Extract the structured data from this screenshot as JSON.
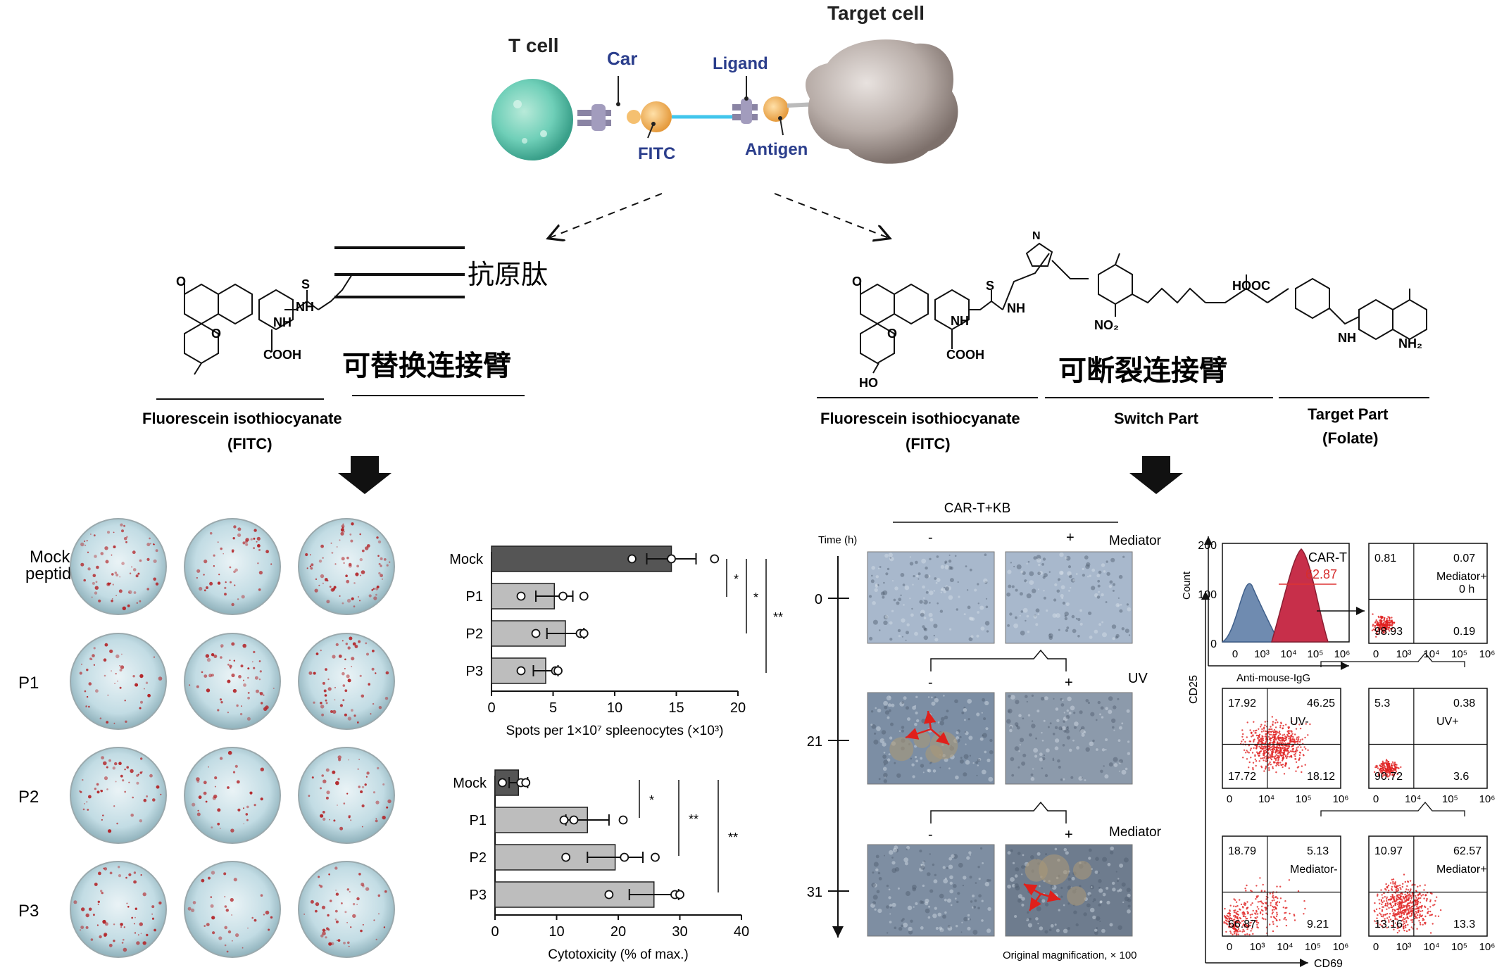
{
  "top": {
    "t_cell": "T cell",
    "car": "Car",
    "ligand": "Ligand",
    "target_cell": "Target cell",
    "fitc": "FITC",
    "antigen": "Antigen"
  },
  "left_branch": {
    "peptide_label": "抗原肽",
    "linker_label": "可替换连接臂",
    "fitc_name": "Fluorescein isothiocyanate",
    "fitc_abbr": "(FITC)",
    "chem": {
      "o": "O",
      "s": "S",
      "nh": "NH",
      "nh2": "NH",
      "cooh": "COOH"
    }
  },
  "right_branch": {
    "linker_label": "可断裂连接臂",
    "fitc_name": "Fluorescein isothiocyanate",
    "fitc_abbr": "(FITC)",
    "switch_part": "Switch Part",
    "target_part": "Target Part",
    "target_part_sub": "(Folate)",
    "chem": {
      "o": "O",
      "s": "S",
      "nh": "NH",
      "nh2": "NH",
      "cooh": "COOH",
      "ho": "HO",
      "hooc": "HOOC",
      "no2": "NO₂",
      "nh2b": "NH₂",
      "nn": "N"
    }
  },
  "elispot": {
    "rows": [
      "Mock peptide",
      "P1",
      "P2",
      "P3"
    ]
  },
  "chart_data": [
    {
      "type": "bar",
      "orientation": "horizontal",
      "categories": [
        "Mock",
        "P1",
        "P2",
        "P3"
      ],
      "values": [
        14.6,
        5.1,
        6.0,
        4.4
      ],
      "errors": [
        2.0,
        1.5,
        1.5,
        1.0
      ],
      "points": [
        [
          11.4,
          14.6,
          18.1
        ],
        [
          2.4,
          5.8,
          7.5
        ],
        [
          3.6,
          7.2,
          7.5
        ],
        [
          2.4,
          5.2,
          5.4
        ]
      ],
      "xlabel": "Spots per 1×10⁷ spleenocytes (×10³)",
      "xlim": [
        0,
        20
      ],
      "xticks": [
        "0",
        "5",
        "10",
        "15",
        "20"
      ],
      "significance": [
        "*",
        "*",
        "**"
      ]
    },
    {
      "type": "bar",
      "orientation": "horizontal",
      "categories": [
        "Mock",
        "P1",
        "P2",
        "P3"
      ],
      "values": [
        3.8,
        15.0,
        19.5,
        25.8
      ],
      "errors": [
        1.5,
        3.5,
        4.5,
        4.0
      ],
      "points": [
        [
          1.2,
          4.2,
          5.0
        ],
        [
          11.2,
          12.8,
          20.8
        ],
        [
          11.5,
          21.0,
          26.0
        ],
        [
          18.5,
          29.2,
          30.0
        ]
      ],
      "xlabel": "Cytotoxicity (% of max.)",
      "xlim": [
        0,
        40
      ],
      "xticks": [
        "0",
        "10",
        "20",
        "30",
        "40"
      ],
      "significance": [
        "*",
        "**",
        "**"
      ]
    }
  ],
  "microscopy": {
    "title": "CAR-T+KB",
    "time_label": "Time (h)",
    "mediator": "Mediator",
    "uv": "UV",
    "minus": "-",
    "plus": "+",
    "times": [
      "0",
      "21",
      "31"
    ],
    "footnote": "Original magnification, × 100"
  },
  "flow": {
    "histogram": {
      "label": "CAR-T",
      "value": "62.87",
      "y_axis": "Count",
      "y_ticks": [
        "200",
        "100",
        "0"
      ],
      "x_ticks": [
        "0",
        "10³",
        "10⁴",
        "10⁵",
        "10⁶"
      ],
      "x_label": "Anti-mouse-IgG"
    },
    "y_axis": "CD25",
    "x_axis": "CD69",
    "plots": [
      {
        "label": "Mediator+\n0 h",
        "label1": "Mediator+",
        "label2": "0 h",
        "q": [
          "0.81",
          "0.07",
          "98.93",
          "0.19"
        ]
      },
      {
        "label1": "UV-",
        "label2": "",
        "q": [
          "17.92",
          "46.25",
          "17.72",
          "18.12"
        ]
      },
      {
        "label1": "UV+",
        "label2": "",
        "q": [
          "5.3",
          "0.38",
          "90.72",
          "3.6"
        ]
      },
      {
        "label1": "Mediator-",
        "label2": "",
        "q": [
          "18.79",
          "5.13",
          "66.87",
          "9.21"
        ]
      },
      {
        "label1": "Mediator+",
        "label2": "",
        "q": [
          "10.97",
          "62.57",
          "13.16",
          "13.3"
        ]
      }
    ],
    "ticks_a": [
      "0",
      "10⁴",
      "10⁵",
      "10⁶"
    ],
    "ticks_b": [
      "0",
      "10³",
      "10⁴",
      "10⁵",
      "10⁶"
    ]
  }
}
